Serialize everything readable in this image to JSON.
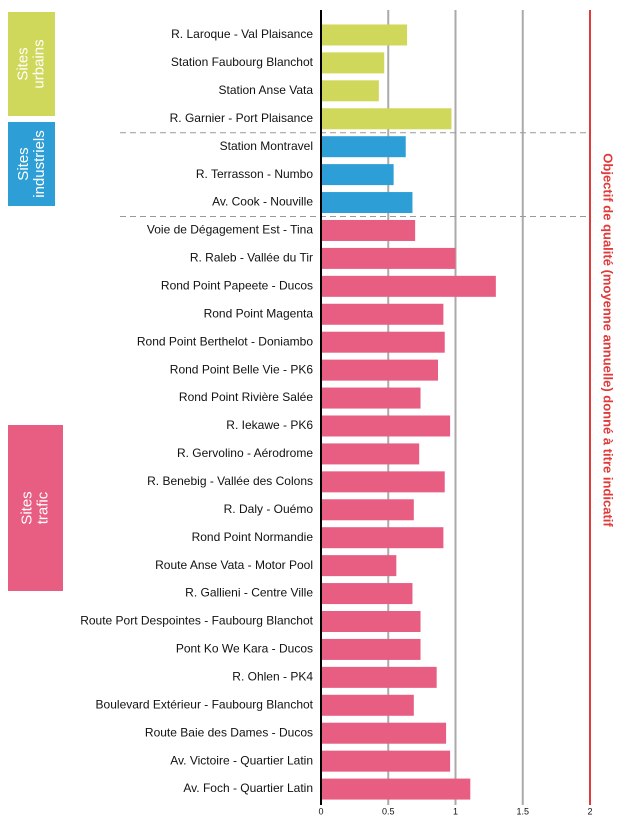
{
  "chart_data": {
    "type": "bar",
    "orientation": "horizontal",
    "categories": [
      "R. Laroque - Val Plaisance",
      "Station Faubourg Blanchot",
      "Station Anse Vata",
      "R. Garnier - Port Plaisance",
      "Station Montravel",
      "R. Terrasson - Numbo",
      "Av. Cook - Nouville",
      "Voie de Dégagement Est - Tina",
      "R. Raleb - Vallée du Tir",
      "Rond Point Papeete - Ducos",
      "Rond Point Magenta",
      "Rond Point Berthelot - Doniambo",
      "Rond Point Belle Vie - PK6",
      "Rond Point Rivière Salée",
      "R. Iekawe - PK6",
      "R. Gervolino - Aérodrome",
      "R. Benebig - Vallée des Colons",
      "R. Daly - Ouémo",
      "Rond Point Normandie",
      "Route Anse Vata - Motor Pool",
      "R. Gallieni - Centre Ville",
      "Route Port Despointes - Faubourg Blanchot",
      "Pont Ko We Kara - Ducos",
      "R. Ohlen - PK4",
      "Boulevard Extérieur - Faubourg Blanchot",
      "Route Baie des Dames - Ducos",
      "Av. Victoire - Quartier Latin",
      "Av. Foch - Quartier Latin"
    ],
    "series": [
      {
        "name": "Sites urbains",
        "color": "#cfd85a",
        "values": [
          0.64,
          0.47,
          0.43,
          0.97,
          null,
          null,
          null,
          null,
          null,
          null,
          null,
          null,
          null,
          null,
          null,
          null,
          null,
          null,
          null,
          null,
          null,
          null,
          null,
          null,
          null,
          null,
          null,
          null
        ]
      },
      {
        "name": "Sites industriels",
        "color": "#2e9fd6",
        "values": [
          null,
          null,
          null,
          null,
          0.63,
          0.54,
          0.68,
          null,
          null,
          null,
          null,
          null,
          null,
          null,
          null,
          null,
          null,
          null,
          null,
          null,
          null,
          null,
          null,
          null,
          null,
          null,
          null,
          null
        ]
      },
      {
        "name": "Sites trafic",
        "color": "#e85d82",
        "values": [
          null,
          null,
          null,
          null,
          null,
          null,
          null,
          0.7,
          1.0,
          1.3,
          0.91,
          0.92,
          0.87,
          0.74,
          0.96,
          0.73,
          0.92,
          0.69,
          0.91,
          0.56,
          0.68,
          0.74,
          0.74,
          0.86,
          0.69,
          0.93,
          0.96,
          1.11
        ]
      }
    ],
    "xlim": [
      0,
      2
    ],
    "xticks": [
      0,
      0.5,
      1,
      1.5,
      2
    ],
    "grid": true,
    "objective_line": {
      "value": 2,
      "label": "Objectif de qualité (moyenne annuelle) donné à titre indicatif",
      "color": "#e03a3a"
    }
  }
}
